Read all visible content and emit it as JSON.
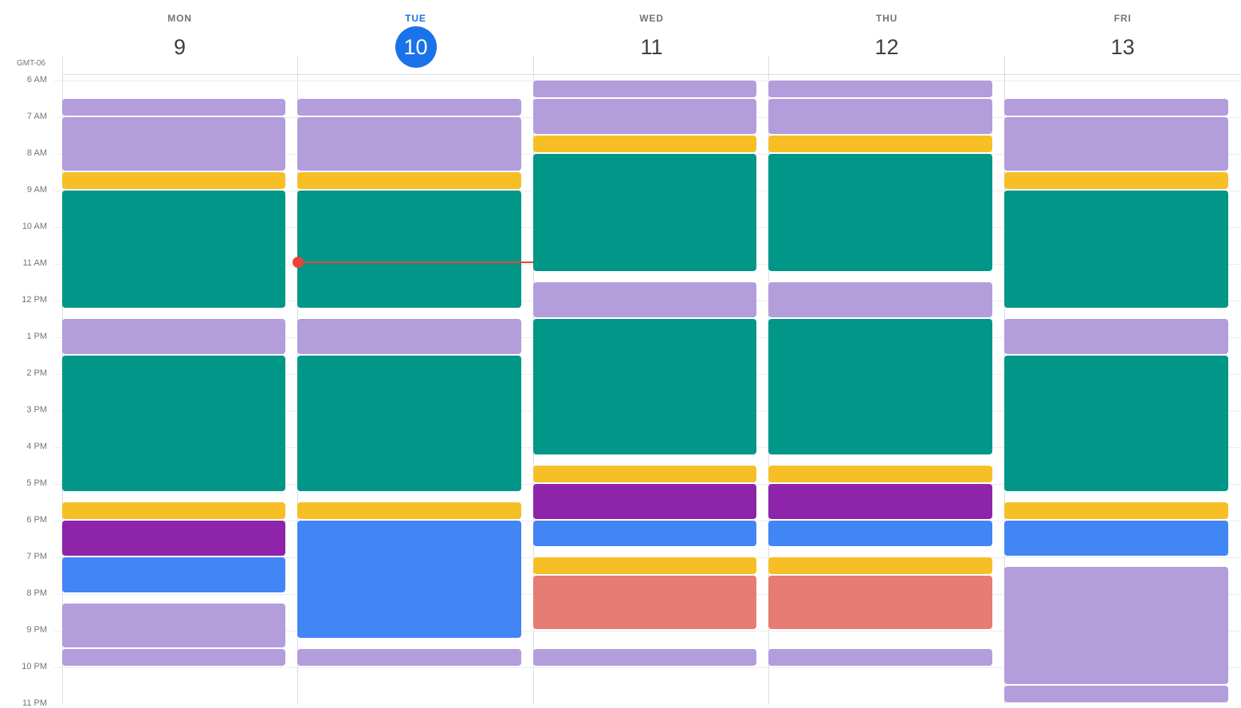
{
  "timezone": "GMT-06",
  "days": [
    {
      "name": "MON",
      "date": "9",
      "today": false
    },
    {
      "name": "TUE",
      "date": "10",
      "today": true
    },
    {
      "name": "WED",
      "date": "11",
      "today": false
    },
    {
      "name": "THU",
      "date": "12",
      "today": false
    },
    {
      "name": "FRI",
      "date": "13",
      "today": false
    }
  ],
  "hours": [
    "6 AM",
    "7 AM",
    "8 AM",
    "9 AM",
    "10 AM",
    "11 AM",
    "12 PM",
    "1 PM",
    "2 PM",
    "3 PM",
    "4 PM",
    "5 PM",
    "6 PM",
    "7 PM",
    "8 PM",
    "9 PM",
    "10 PM",
    "11 PM"
  ],
  "current_time_indicator": {
    "day": "TUE"
  },
  "event_colors": {
    "lavender": "#b39ddb",
    "yellow": "#f6bf26",
    "teal": "#009688",
    "purple": "#8e24aa",
    "blue": "#4285f4",
    "salmon": "#e67c73",
    "today_accent": "#1a73e8",
    "now_indicator": "#ea4335"
  }
}
